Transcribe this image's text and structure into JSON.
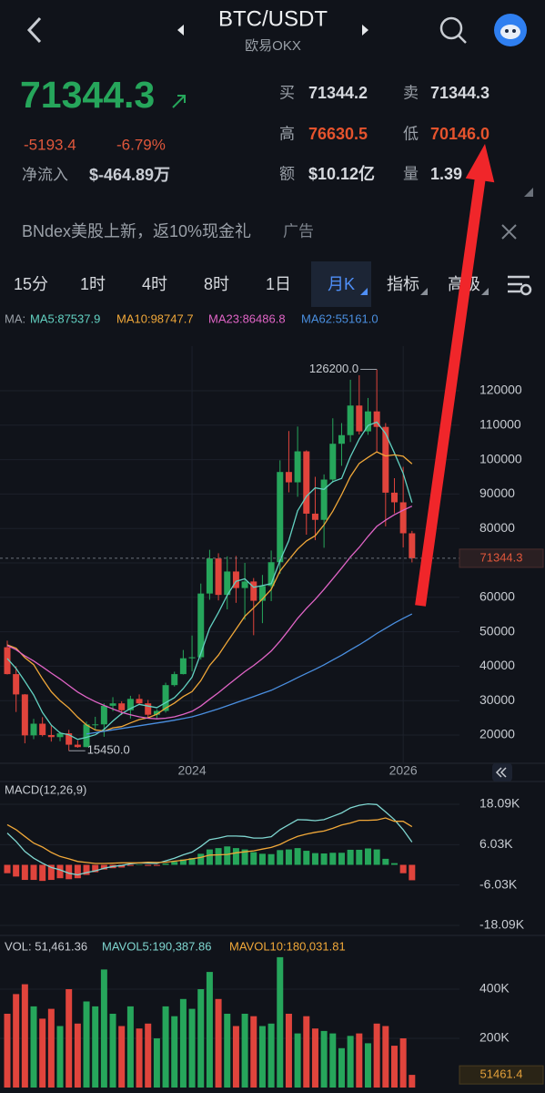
{
  "header": {
    "pair": "BTC/USDT",
    "exchange": "欧易OKX"
  },
  "ticker": {
    "last": "71344.3",
    "change": "-5193.4",
    "change_pct": "-6.79%",
    "netflow_label": "净流入",
    "netflow": "$-464.89万",
    "stats": [
      [
        "买",
        "71344.2"
      ],
      [
        "卖",
        "71344.3"
      ],
      [
        "高",
        "76630.5"
      ],
      [
        "低",
        "70146.0"
      ],
      [
        "额",
        "$10.12亿"
      ],
      [
        "量",
        "1.39"
      ]
    ]
  },
  "banner": {
    "text": "BNdex美股上新，返10%现金礼",
    "tag": "广告"
  },
  "tabs": [
    "15分",
    "1时",
    "4时",
    "8时",
    "1日",
    "月K",
    "指标",
    "高级"
  ],
  "active_tab": 5,
  "chart_data": [
    {
      "type": "candlestick",
      "legend_prefix": "MA:",
      "up_color": "#26a65b",
      "down_color": "#e0443c",
      "categories": [
        null,
        null,
        null,
        null,
        null,
        null,
        null,
        null,
        null,
        null,
        null,
        null,
        null,
        null,
        null,
        null,
        null,
        null,
        null,
        null,
        null,
        "2024",
        null,
        null,
        null,
        null,
        null,
        null,
        null,
        null,
        null,
        null,
        null,
        null,
        null,
        null,
        null,
        null,
        null,
        null,
        null,
        null,
        null,
        null,
        null,
        "2026",
        null
      ],
      "open": [
        45500,
        37700,
        31800,
        19900,
        23300,
        20000,
        19400,
        20500,
        17200,
        16500,
        23100,
        23100,
        28500,
        29200,
        27200,
        30500,
        29200,
        25900,
        27000,
        34500,
        37700,
        42300,
        42600,
        61100,
        71300,
        60700,
        67500,
        62700,
        64600,
        59000,
        63300,
        70200,
        96400,
        93400,
        102400,
        84300,
        82500,
        94200,
        104600,
        107100,
        115700,
        108200,
        114000,
        109500,
        90400,
        87600,
        78600
      ],
      "high": [
        47400,
        40000,
        31900,
        24700,
        25200,
        22800,
        21000,
        21500,
        18400,
        23900,
        25300,
        29200,
        31000,
        29800,
        31400,
        31800,
        30200,
        27500,
        35200,
        38400,
        44700,
        48900,
        64000,
        73800,
        72800,
        71900,
        72000,
        70000,
        65600,
        66500,
        73600,
        99800,
        108300,
        109600,
        102700,
        95000,
        95700,
        112000,
        110600,
        123200,
        124500,
        117900,
        126200,
        110600,
        94600,
        97900,
        79300
      ],
      "low": [
        37600,
        26700,
        17600,
        18800,
        19600,
        18100,
        18200,
        15450,
        16300,
        16500,
        21400,
        19500,
        26900,
        25800,
        24800,
        28900,
        25100,
        24900,
        26500,
        34100,
        37600,
        38500,
        41900,
        59300,
        59100,
        56500,
        58400,
        53500,
        49000,
        52500,
        58900,
        66800,
        90500,
        89200,
        78200,
        76600,
        74400,
        93300,
        98200,
        105100,
        107300,
        107200,
        102000,
        80600,
        84400,
        74500,
        70146
      ],
      "close": [
        37700,
        31800,
        19900,
        23300,
        20000,
        19400,
        20500,
        17200,
        16500,
        23100,
        23100,
        28500,
        29200,
        27200,
        30500,
        29200,
        25900,
        27000,
        34500,
        37700,
        42300,
        42600,
        61100,
        71300,
        60700,
        67500,
        62700,
        64600,
        59000,
        63300,
        70200,
        96400,
        93400,
        102400,
        84300,
        82500,
        94200,
        104600,
        107100,
        115700,
        108200,
        114000,
        109500,
        90400,
        87600,
        78600,
        71344.3
      ],
      "series": [
        {
          "name": "MA5:87537.9",
          "color": "#62d1c1",
          "values": [
            42240,
            39340,
            35620,
            31640,
            26540,
            22880,
            20620,
            20080,
            18720,
            19340,
            20080,
            21680,
            24080,
            26220,
            27700,
            28920,
            28400,
            27960,
            29420,
            30860,
            33480,
            36820,
            43640,
            51000,
            55600,
            60640,
            64660,
            65360,
            62900,
            63420,
            63960,
            70700,
            76460,
            85140,
            89340,
            91800,
            91360,
            93600,
            94540,
            100820,
            105960,
            109920,
            110900,
            107560,
            101940,
            96020,
            87537.9
          ]
        },
        {
          "name": "MA10:98747.7",
          "color": "#f1a839",
          "values": [
            46190,
            45220,
            42500,
            40450,
            36320,
            32560,
            29980,
            27850,
            25180,
            22940,
            21480,
            21150,
            22080,
            22470,
            23520,
            24500,
            25040,
            26020,
            27820,
            29280,
            31200,
            32610,
            35800,
            40210,
            43230,
            47060,
            50740,
            54500,
            56950,
            59510,
            62300,
            67680,
            70910,
            74020,
            76380,
            77880,
            81030,
            85030,
            89840,
            95080,
            98880,
            100640,
            102250,
            101050,
            101380,
            100990,
            98747.7
          ]
        },
        {
          "name": "MA23:86486.8",
          "color": "#e064c6",
          "values": [
            46000,
            44800,
            43000,
            41500,
            39800,
            38000,
            36300,
            34400,
            32500,
            31000,
            29700,
            28600,
            27600,
            26600,
            25900,
            25300,
            24900,
            24700,
            24900,
            25300,
            26000,
            26900,
            28400,
            30400,
            32300,
            34400,
            36400,
            38400,
            40200,
            42200,
            44400,
            47300,
            50500,
            53900,
            56800,
            59400,
            62300,
            65400,
            68500,
            71700,
            74500,
            77700,
            80600,
            82400,
            84000,
            85300,
            86486.8
          ]
        },
        {
          "name": "MA62:55161.0",
          "color": "#4a8fe0",
          "values": [
            null,
            null,
            null,
            null,
            null,
            null,
            null,
            null,
            null,
            20300,
            20700,
            21100,
            21500,
            21900,
            22300,
            22700,
            23100,
            23500,
            23900,
            24300,
            24800,
            25300,
            26000,
            26800,
            27600,
            28500,
            29400,
            30300,
            31200,
            32100,
            33000,
            34200,
            35400,
            36700,
            37900,
            39100,
            40400,
            41800,
            43200,
            44700,
            46200,
            47800,
            49500,
            51000,
            52500,
            53900,
            55161
          ]
        }
      ],
      "ylim": [
        11800,
        132960
      ],
      "yticks": [
        20000,
        30000,
        40000,
        50000,
        60000,
        70000,
        80000,
        90000,
        100000,
        110000,
        120000
      ],
      "grid": true,
      "high_label": "126200.0",
      "low_label": "15450.0",
      "last_label": "71344.3"
    },
    {
      "type": "macd",
      "title": "MACD(12,26,9)",
      "up_color": "#26a65b",
      "down_color": "#e0443c",
      "values": [
        -2500,
        -3500,
        -4500,
        -4500,
        -4800,
        -4500,
        -4000,
        -4300,
        -4000,
        -3000,
        -2200,
        -1400,
        -1000,
        -800,
        -300,
        0,
        -300,
        -300,
        400,
        900,
        1600,
        2000,
        3300,
        4600,
        5000,
        5500,
        5000,
        4600,
        3800,
        3300,
        3200,
        4400,
        4600,
        5000,
        4200,
        3500,
        3400,
        3600,
        3600,
        4500,
        4500,
        4900,
        4600,
        1800,
        500,
        -2500,
        -4600
      ],
      "lines": [
        {
          "color": "#7fd6d0",
          "values": [
            9500,
            7000,
            4000,
            2000,
            500,
            -800,
            -1500,
            -2500,
            -3000,
            -2300,
            -1800,
            -1000,
            -500,
            -200,
            300,
            600,
            500,
            400,
            1200,
            2000,
            3000,
            3800,
            5500,
            7500,
            8000,
            8600,
            8600,
            8500,
            8000,
            8000,
            8400,
            10500,
            12000,
            13500,
            13400,
            13200,
            13500,
            14500,
            15500,
            17000,
            17800,
            18200,
            18000,
            15800,
            13500,
            10500,
            6800
          ]
        },
        {
          "color": "#f1a839",
          "values": [
            12000,
            10500,
            8500,
            6500,
            5300,
            3700,
            2500,
            1800,
            1000,
            700,
            400,
            400,
            500,
            600,
            600,
            600,
            800,
            700,
            800,
            1100,
            1400,
            1800,
            2200,
            2900,
            3000,
            3100,
            3600,
            3900,
            4200,
            4700,
            5200,
            6100,
            7400,
            8500,
            9200,
            9700,
            10100,
            10900,
            11900,
            12500,
            13300,
            13300,
            13400,
            14000,
            13000,
            13000,
            11400
          ]
        }
      ],
      "ylim": [
        -20540,
        24350
      ],
      "yticks": [
        {
          "value": 18090,
          "label": "18.09K"
        },
        {
          "value": 6030,
          "label": "6.03K"
        },
        {
          "value": -6030,
          "label": "-6.03K"
        },
        {
          "value": -18090,
          "label": "-18.09K"
        }
      ]
    },
    {
      "type": "volume",
      "title": "VOL: 51,461.36",
      "legend": [
        {
          "name": "MAVOL5:190,387.86",
          "color": "#7fd6d0"
        },
        {
          "name": "MAVOL10:180,031.81",
          "color": "#f1a839"
        }
      ],
      "values": [
        300000,
        380000,
        420000,
        330000,
        280000,
        320000,
        250000,
        400000,
        260000,
        350000,
        330000,
        480000,
        300000,
        250000,
        330000,
        240000,
        260000,
        200000,
        330000,
        290000,
        360000,
        320000,
        400000,
        470000,
        360000,
        300000,
        250000,
        300000,
        290000,
        250000,
        260000,
        530000,
        300000,
        220000,
        290000,
        240000,
        230000,
        220000,
        160000,
        210000,
        220000,
        180000,
        260000,
        250000,
        170000,
        200000,
        51461.36
      ],
      "ylim": [
        0,
        533300
      ],
      "yticks": [
        {
          "value": 200000,
          "label": "200K"
        },
        {
          "value": 400000,
          "label": "400K"
        }
      ],
      "last_label": "51461.4"
    }
  ]
}
